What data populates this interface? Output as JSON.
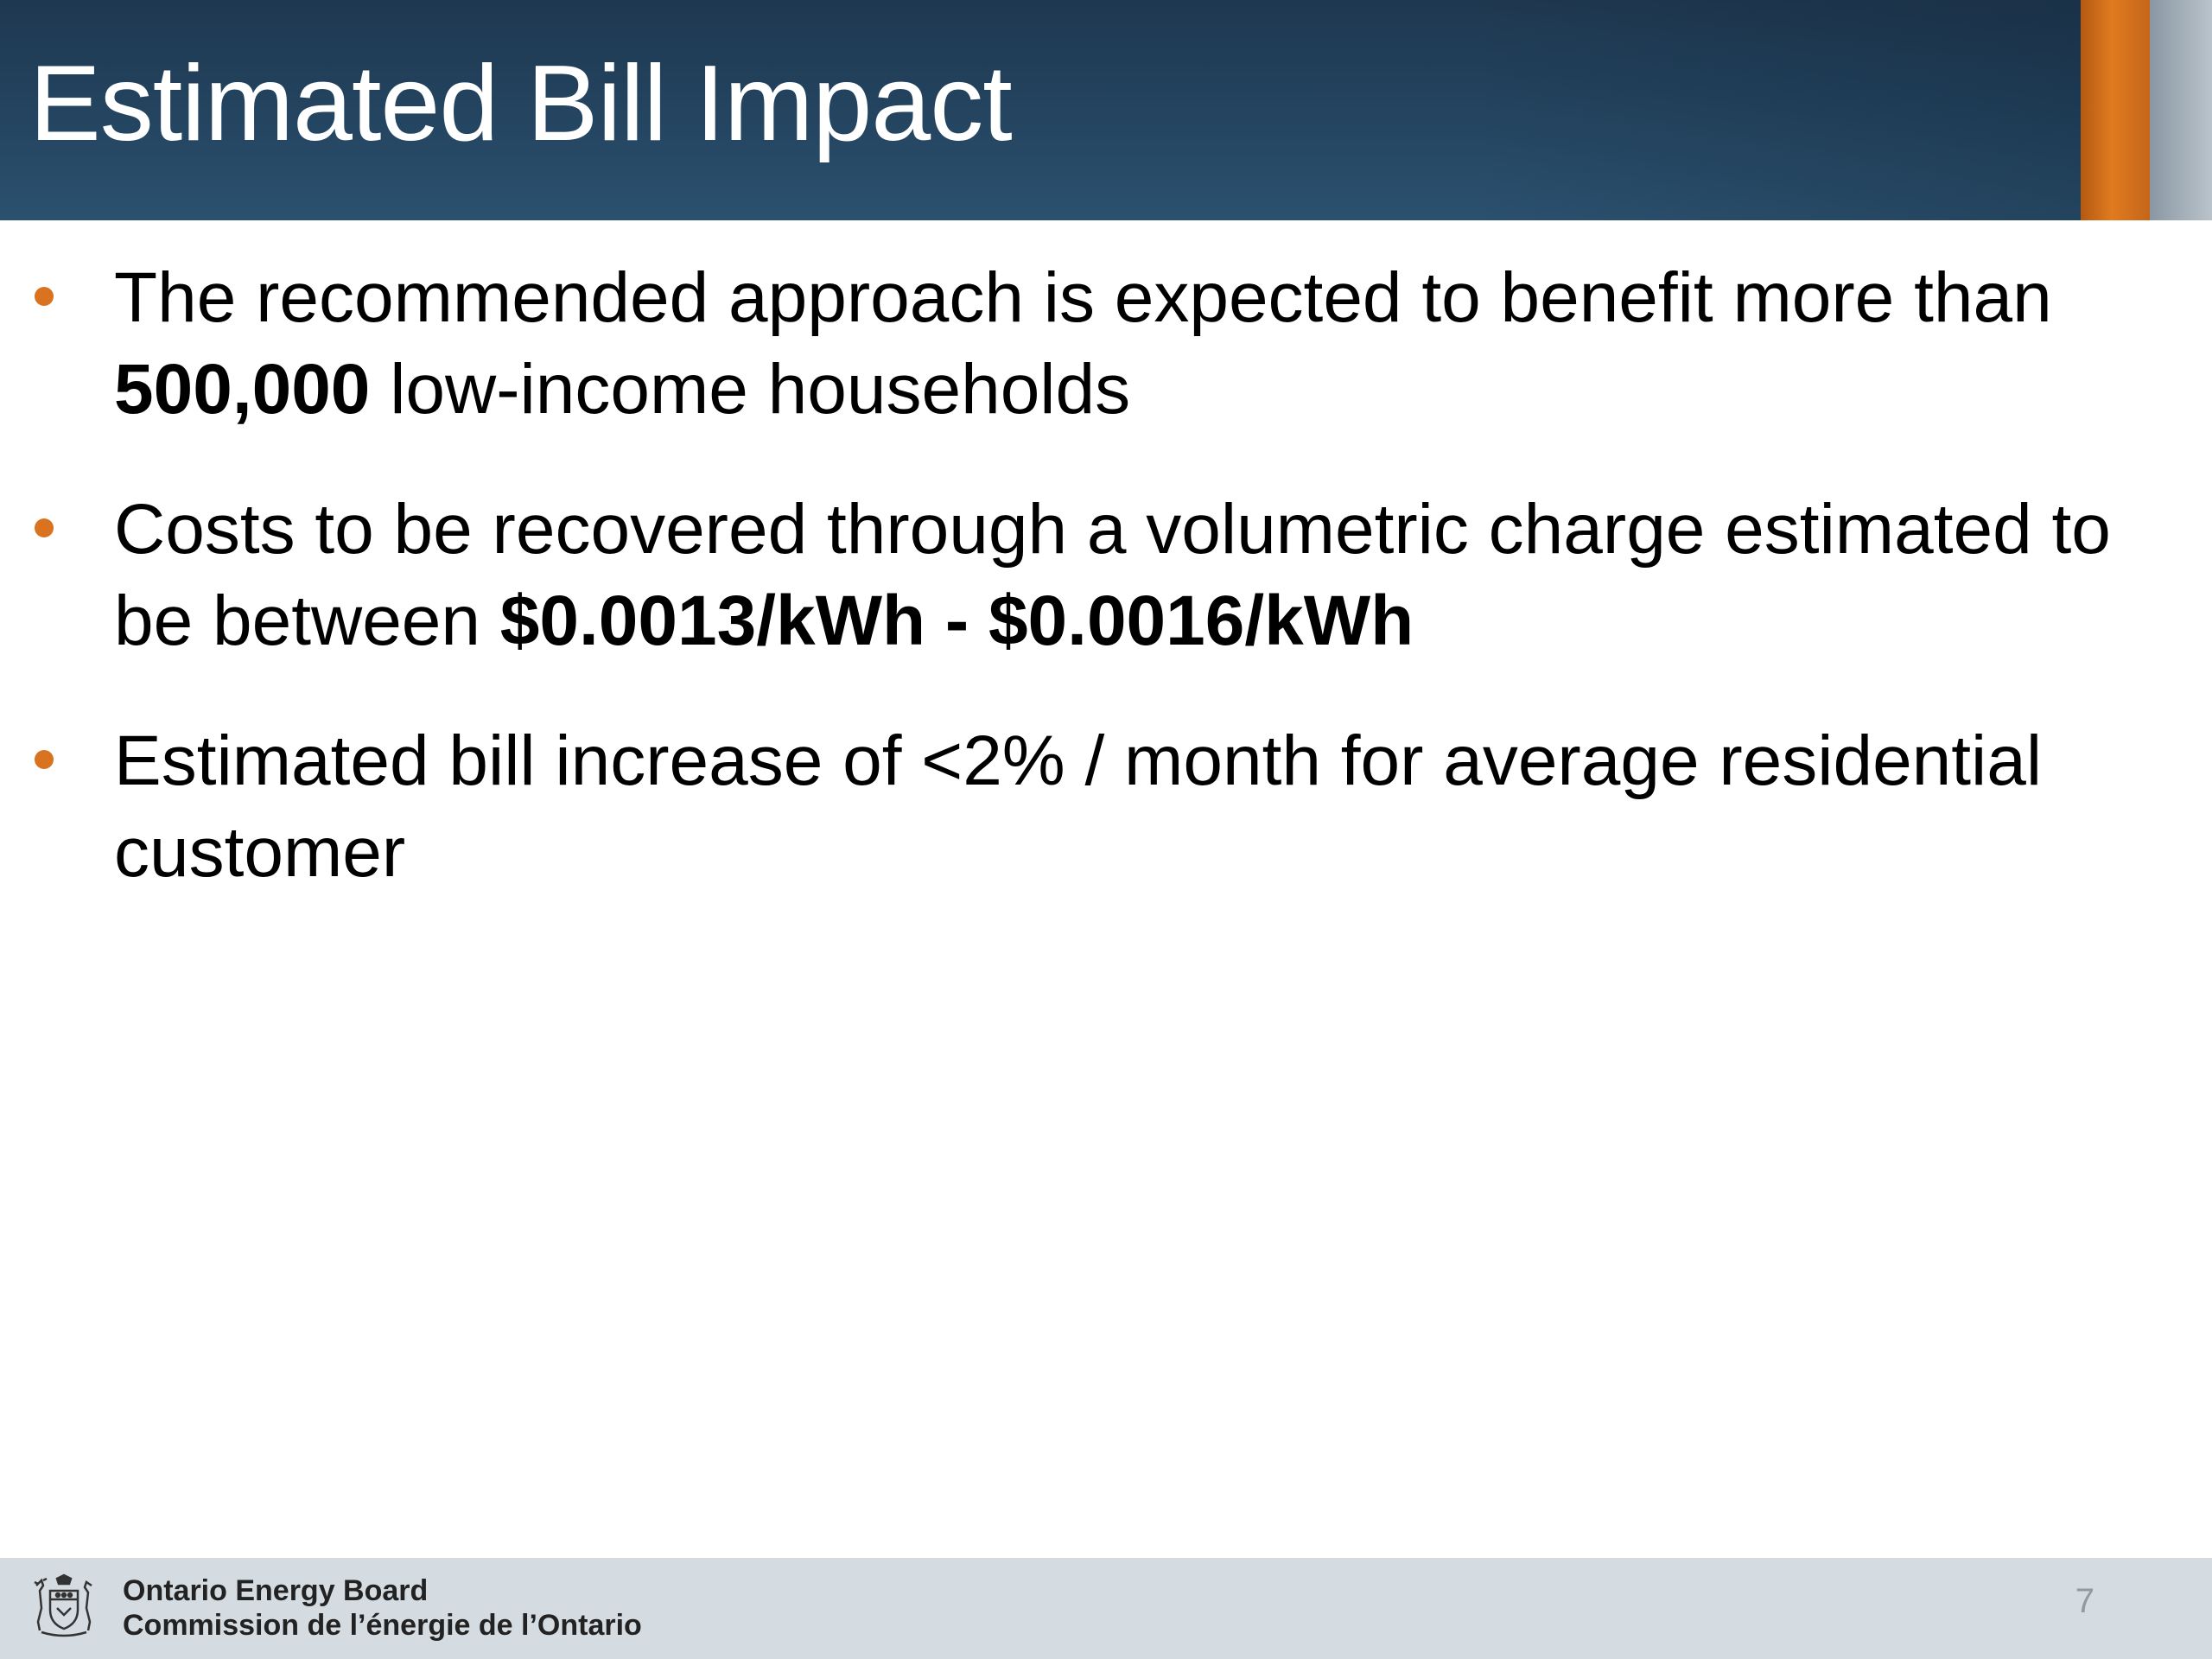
{
  "slide": {
    "title": "Estimated Bill Impact",
    "bullets": [
      {
        "before": "The recommended approach is expected to benefit more than ",
        "bold": "500,000",
        "after": " low-income households"
      },
      {
        "before": "Costs to be recovered through a volumetric charge estimated to be between ",
        "bold": "$0.0013/kWh - $0.0016/kWh",
        "after": ""
      },
      {
        "before": "Estimated bill increase of <2% / month for average residential customer",
        "bold": "",
        "after": ""
      }
    ],
    "page_number": "7"
  },
  "footer": {
    "org_name_en": "Ontario Energy Board",
    "org_name_fr": "Commission de l’énergie de l’Ontario",
    "logo_icon": "ontario-coat-of-arms-icon"
  },
  "colors": {
    "header_bg": "#22415c",
    "accent_orange": "#d9731f",
    "footer_bg": "#d4dce2"
  }
}
